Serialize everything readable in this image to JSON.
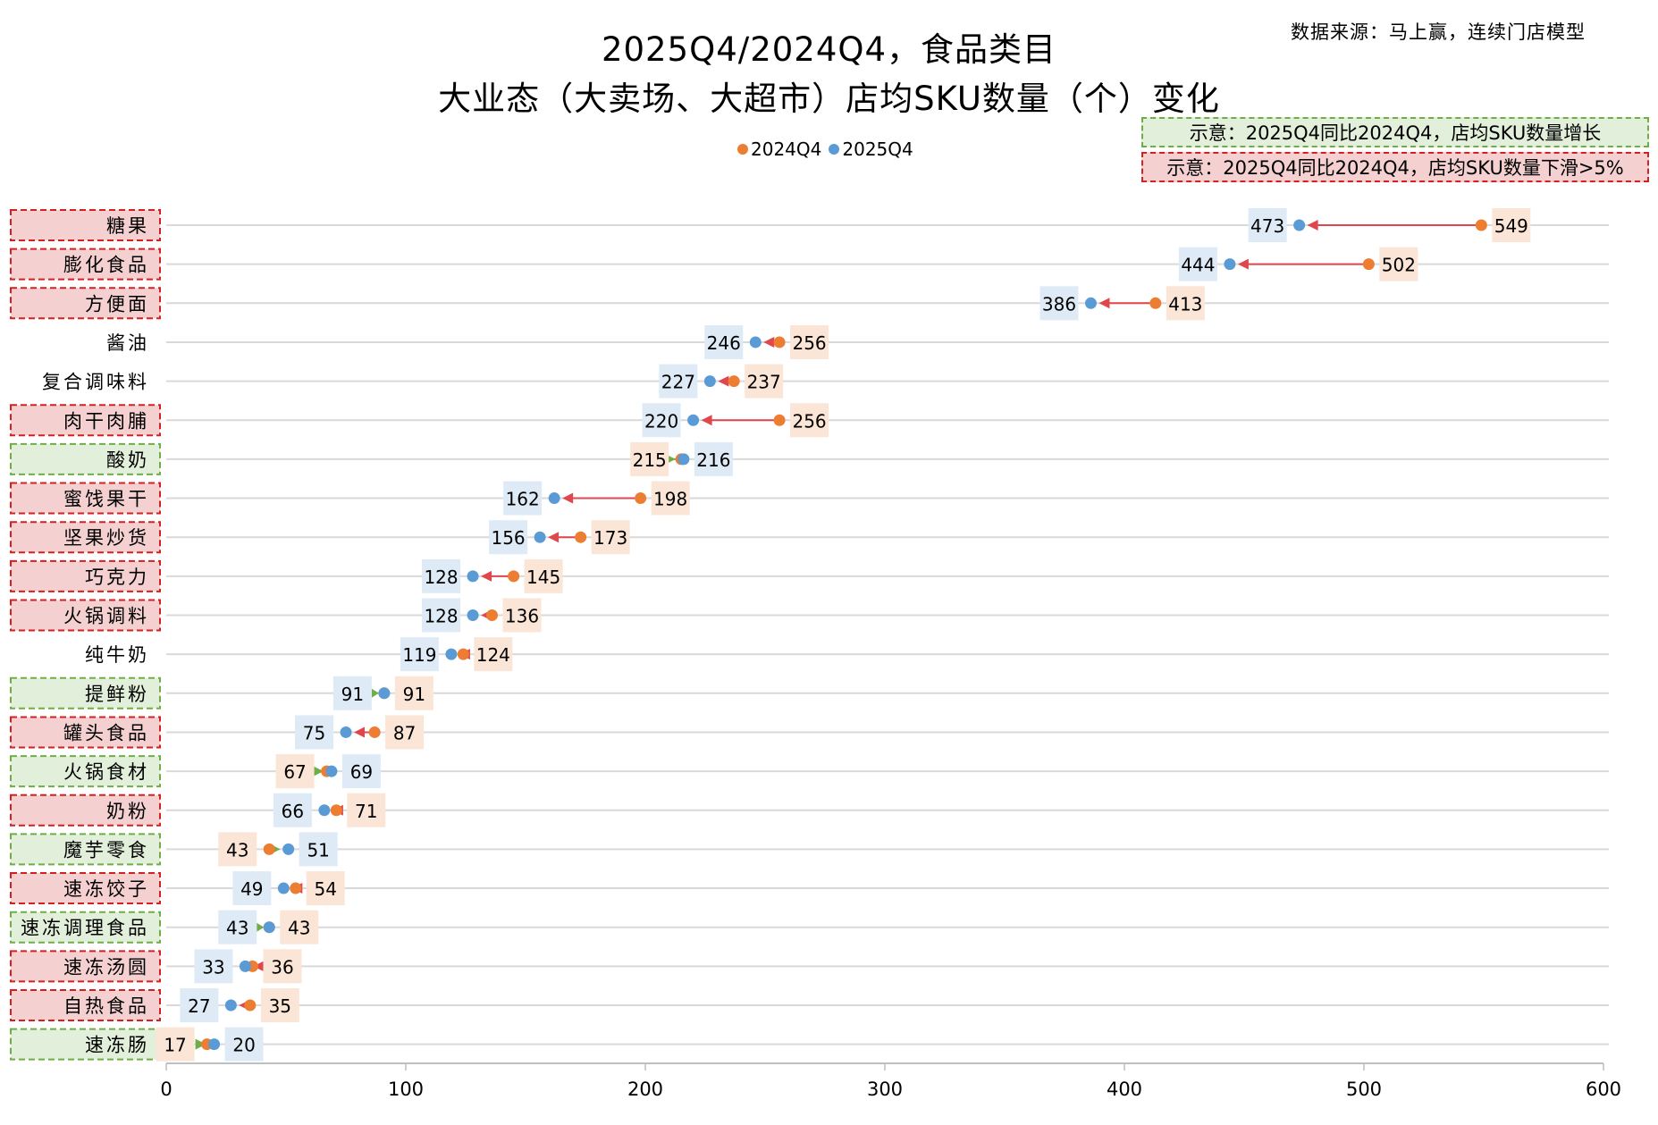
{
  "chart_data": {
    "type": "dumbbell",
    "title": "2025Q4/2024Q4，食品类目",
    "subtitle": "大业态（大卖场、大超市）店均SKU数量（个）变化",
    "source": "数据来源：马上赢，连续门店模型",
    "legend": [
      {
        "name": "2024Q4",
        "color": "#ED7D31"
      },
      {
        "name": "2025Q4",
        "color": "#5B9BD5"
      }
    ],
    "legend_placement": "top",
    "notes": {
      "growth": "示意：2025Q4同比2024Q4，店均SKU数量增长",
      "decline": "示意：2025Q4同比2024Q4，店均SKU数量下滑>5%"
    },
    "colors": {
      "growth_fill": "#E2EFDA",
      "growth_border": "#70AD47",
      "decline_fill": "#F4D0D0",
      "decline_border": "#D42020",
      "arrow_decline": "#E0474C",
      "arrow_growth": "#70AD47",
      "label_2024_bg": "#FBE5D6",
      "label_2025_bg": "#DEEBF7"
    },
    "xlim": [
      0,
      600
    ],
    "xticks": [
      0,
      100,
      200,
      300,
      400,
      500,
      600
    ],
    "grid": true,
    "categories": [
      "糖果",
      "膨化食品",
      "方便面",
      "酱油",
      "复合调味料",
      "肉干肉脯",
      "酸奶",
      "蜜饯果干",
      "坚果炒货",
      "巧克力",
      "火锅调料",
      "纯牛奶",
      "提鲜粉",
      "罐头食品",
      "火锅食材",
      "奶粉",
      "魔芋零食",
      "速冻饺子",
      "速冻调理食品",
      "速冻汤圆",
      "自热食品",
      "速冻肠"
    ],
    "series": [
      {
        "name": "2024Q4",
        "values": [
          549,
          502,
          413,
          256,
          237,
          256,
          215,
          198,
          173,
          145,
          136,
          124,
          91,
          87,
          67,
          71,
          43,
          54,
          43,
          36,
          35,
          17
        ]
      },
      {
        "name": "2025Q4",
        "values": [
          473,
          444,
          386,
          246,
          227,
          220,
          216,
          162,
          156,
          128,
          128,
          119,
          91,
          75,
          69,
          66,
          51,
          49,
          43,
          33,
          27,
          20
        ]
      }
    ],
    "highlight": [
      "decline",
      "decline",
      "decline",
      "none",
      "none",
      "decline",
      "growth",
      "decline",
      "decline",
      "decline",
      "decline",
      "none",
      "growth",
      "decline",
      "growth",
      "decline",
      "growth",
      "decline",
      "growth",
      "decline",
      "decline",
      "growth"
    ]
  }
}
